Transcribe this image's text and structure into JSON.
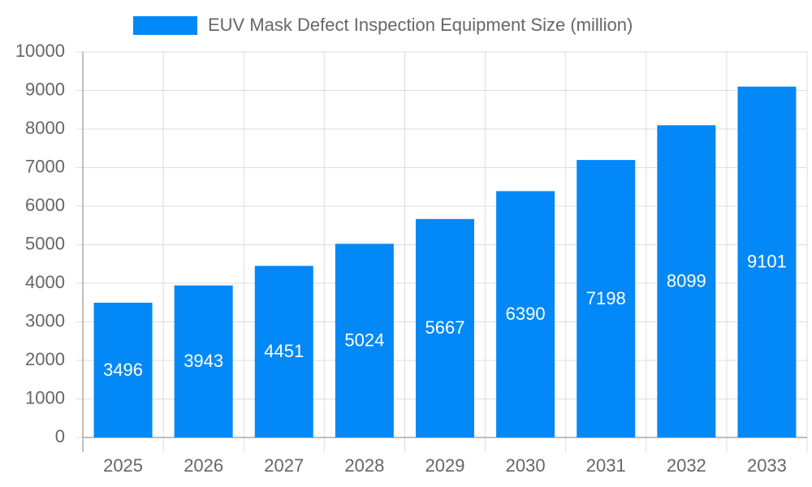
{
  "chart_data": {
    "type": "bar",
    "categories": [
      "2025",
      "2026",
      "2027",
      "2028",
      "2029",
      "2030",
      "2031",
      "2032",
      "2033"
    ],
    "series": [
      {
        "name": "EUV Mask Defect Inspection Equipment Size (million)",
        "color": "#0388f7",
        "values": [
          3496,
          3943,
          4451,
          5024,
          5667,
          6390,
          7198,
          8099,
          9101
        ]
      }
    ],
    "ylim": [
      0,
      10000
    ],
    "yticks": [
      0,
      1000,
      2000,
      3000,
      4000,
      5000,
      6000,
      7000,
      8000,
      9000,
      10000
    ],
    "grid": true,
    "legend": "top",
    "data_labels": true
  }
}
